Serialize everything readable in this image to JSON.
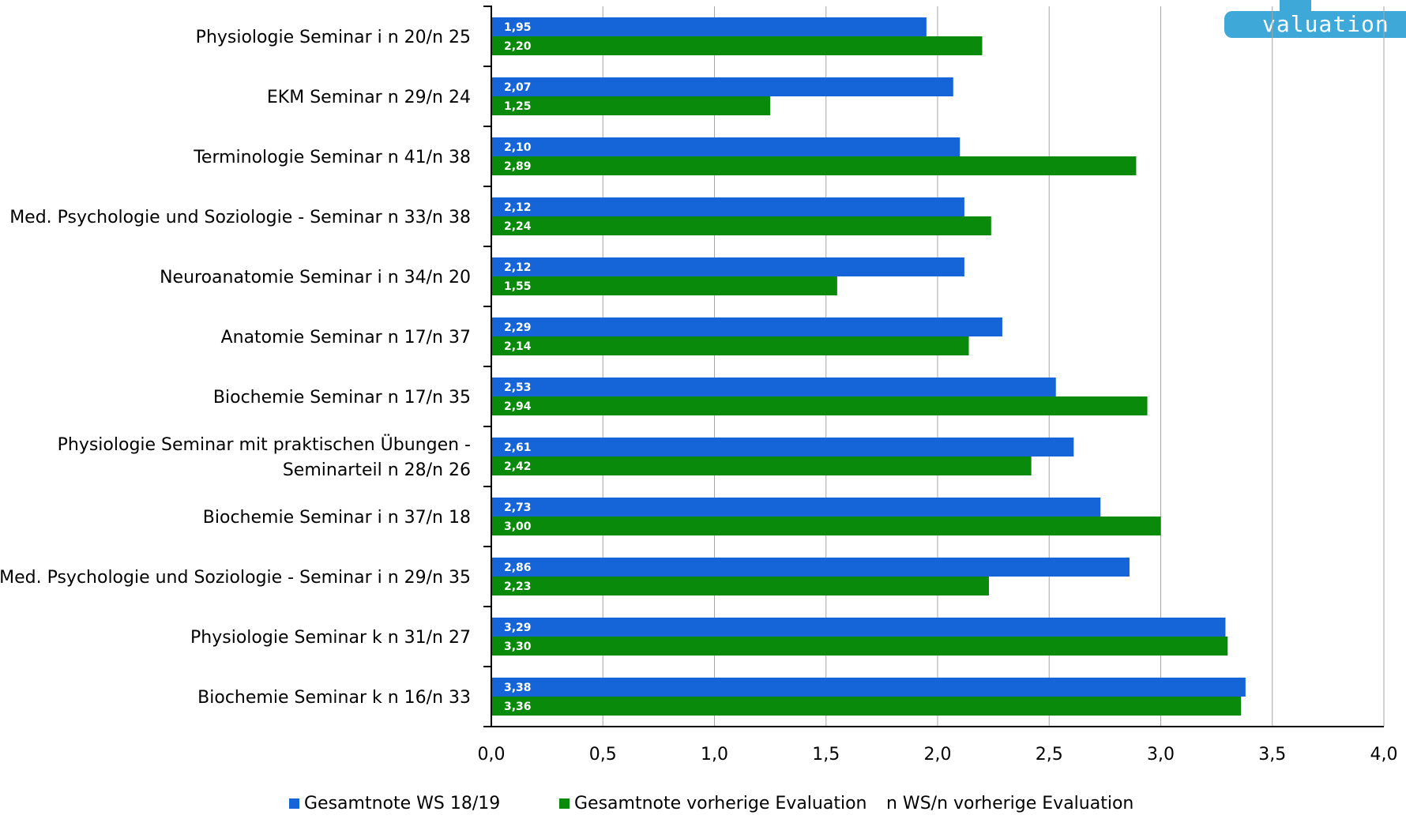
{
  "logo": {
    "text": "valuation"
  },
  "colors": {
    "series1": "#1565d8",
    "series2": "#0a8a0a",
    "grid": "#a6a6a6",
    "axis": "#000000"
  },
  "chart_data": {
    "type": "bar",
    "orientation": "horizontal",
    "categories": [
      "Physiologie Seminar i n 20/n 25",
      "EKM Seminar n 29/n 24",
      "Terminologie Seminar n 41/n 38",
      "Med. Psychologie und Soziologie - Seminar n 33/n 38",
      "Neuroanatomie Seminar i n 34/n 20",
      "Anatomie Seminar n 17/n 37",
      "Biochemie Seminar n 17/n 35",
      "Physiologie Seminar mit praktischen Übungen - Seminarteil n 28/n 26",
      "Biochemie Seminar i n 37/n 18",
      "Med. Psychologie und Soziologie - Seminar i n 29/n 35",
      "Physiologie Seminar k n 31/n 27",
      "Biochemie Seminar k n 16/n 33"
    ],
    "category_lines": [
      [
        "Physiologie Seminar i n 20/n 25"
      ],
      [
        "EKM Seminar n 29/n 24"
      ],
      [
        "Terminologie Seminar n 41/n 38"
      ],
      [
        "Med. Psychologie und Soziologie - Seminar n 33/n 38"
      ],
      [
        "Neuroanatomie Seminar i n 34/n 20"
      ],
      [
        "Anatomie Seminar n 17/n 37"
      ],
      [
        "Biochemie Seminar n 17/n 35"
      ],
      [
        "Physiologie Seminar mit praktischen Übungen -",
        "Seminarteil n 28/n 26"
      ],
      [
        "Biochemie Seminar i n 37/n 18"
      ],
      [
        "Med. Psychologie und Soziologie - Seminar i n 29/n 35"
      ],
      [
        "Physiologie Seminar k n 31/n 27"
      ],
      [
        "Biochemie Seminar k n 16/n 33"
      ]
    ],
    "series": [
      {
        "name": "Gesamtnote WS 18/19",
        "values": [
          1.95,
          2.07,
          2.1,
          2.12,
          2.12,
          2.29,
          2.53,
          2.61,
          2.73,
          2.86,
          3.29,
          3.38
        ],
        "labels": [
          "1,95",
          "2,07",
          "2,10",
          "2,12",
          "2,12",
          "2,29",
          "2,53",
          "2,61",
          "2,73",
          "2,86",
          "3,29",
          "3,38"
        ]
      },
      {
        "name": "Gesamtnote vorherige Evaluation",
        "values": [
          2.2,
          1.25,
          2.89,
          2.24,
          1.55,
          2.14,
          2.94,
          2.42,
          3.0,
          2.23,
          3.3,
          3.36
        ],
        "labels": [
          "2,20",
          "1,25",
          "2,89",
          "2,24",
          "1,55",
          "2,14",
          "2,94",
          "2,42",
          "3,00",
          "2,23",
          "3,30",
          "3,36"
        ]
      }
    ],
    "xlim": [
      0,
      4
    ],
    "x_ticks": [
      0,
      0.5,
      1,
      1.5,
      2,
      2.5,
      3,
      3.5,
      4
    ],
    "x_tick_labels": [
      "0,0",
      "0,5",
      "1,0",
      "1,5",
      "2,0",
      "2,5",
      "3,0",
      "3,5",
      "4,0"
    ],
    "grid": "vertical",
    "legend_position": "bottom",
    "legend": [
      "Gesamtnote WS 18/19",
      "Gesamtnote vorherige Evaluation",
      "n WS/n vorherige Evaluation"
    ]
  }
}
